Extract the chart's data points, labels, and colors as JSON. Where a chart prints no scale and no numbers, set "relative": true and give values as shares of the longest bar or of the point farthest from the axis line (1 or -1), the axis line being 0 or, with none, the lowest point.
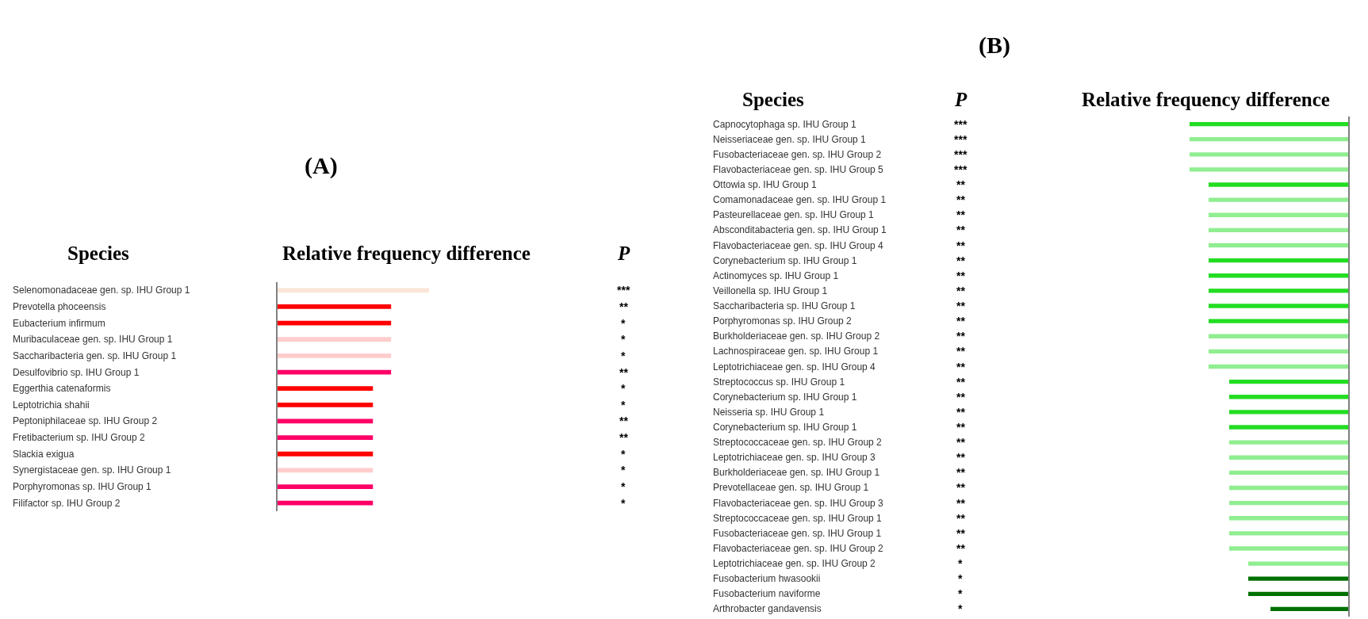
{
  "chart_data": [
    {
      "type": "bar",
      "orientation": "horizontal",
      "relative": true,
      "title": "(A)",
      "ylabel": "Species",
      "xlabel": "Relative frequency difference",
      "categories": [
        "Selenomonadaceae gen. sp. IHU Group 1",
        "Prevotella phoceensis",
        "Eubacterium infirmum",
        "Muribaculaceae gen. sp. IHU Group 1",
        "Saccharibacteria gen. sp. IHU Group 1",
        "Desulfovibrio sp. IHU Group 1",
        "Eggerthia catenaformis",
        "Leptotrichia shahii",
        "Peptoniphilaceae sp. IHU Group 2",
        "Fretibacterium sp. IHU Group 2",
        "Slackia exigua",
        "Synergistaceae gen. sp. IHU Group 1",
        "Porphyromonas sp. IHU Group 1",
        "Filifactor sp. IHU Group 2"
      ],
      "values": [
        1,
        0.75,
        0.75,
        0.75,
        0.75,
        0.75,
        0.63,
        0.63,
        0.63,
        0.63,
        0.63,
        0.63,
        0.63,
        0.63
      ],
      "colors": [
        "#fbe5d6",
        "#ff0000",
        "#ff0000",
        "#ffcccc",
        "#ffcccc",
        "#ff0066",
        "#ff0000",
        "#ff0000",
        "#ff0066",
        "#ff0066",
        "#ff0000",
        "#ffcccc",
        "#ff0066",
        "#ff0066"
      ],
      "annotations": [
        "P",
        "***",
        "**",
        "*",
        "*",
        "*",
        "**",
        "*",
        "*",
        "**",
        "**",
        "*",
        "*",
        "*",
        "*"
      ]
    },
    {
      "type": "bar",
      "orientation": "horizontal",
      "relative": true,
      "title": "(B)",
      "ylabel": "Species",
      "xlabel": "Relative frequency difference",
      "categories": [
        "Capnocytophaga sp. IHU Group 1",
        "Neisseriaceae gen. sp. IHU Group 1",
        "Fusobacteriaceae gen. sp. IHU Group 2",
        "Flavobacteriaceae gen. sp. IHU Group 5",
        "Ottowia sp. IHU Group 1",
        "Comamonadaceae gen. sp. IHU Group 1",
        "Pasteurellaceae gen. sp. IHU Group 1",
        "Absconditabacteria gen. sp. IHU Group 1",
        "Flavobacteriaceae gen. sp. IHU Group 4",
        "Corynebacterium sp. IHU Group 1",
        "Actinomyces sp. IHU Group 1",
        "Veillonella sp. IHU Group 1",
        "Saccharibacteria sp. IHU Group 1",
        "Porphyromonas sp. IHU Group 2",
        "Burkholderiaceae gen. sp. IHU Group 2",
        "Lachnospiraceae gen. sp. IHU Group 1",
        "Leptotrichiaceae gen. sp. IHU Group 4",
        "Streptococcus sp. IHU Group 1",
        "Corynebacterium sp. IHU Group 1",
        "Neisseria sp. IHU Group 1",
        "Corynebacterium sp. IHU Group 1",
        "Streptococcaceae gen. sp. IHU Group 2",
        "Leptotrichiaceae gen. sp. IHU Group 3",
        "Burkholderiaceae gen. sp. IHU Group 1",
        "Prevotellaceae gen. sp. IHU Group 1",
        "Flavobacteriaceae gen. sp. IHU Group 3",
        "Streptococcaceae gen. sp. IHU Group 1",
        "Fusobacteriaceae gen. sp. IHU Group 1",
        "Flavobacteriaceae gen. sp. IHU Group 2",
        "Leptotrichiaceae gen. sp. IHU Group 2",
        "Fusobacterium hwasookii",
        "Fusobacterium naviforme",
        "Arthrobacter gandavensis"
      ],
      "values": [
        -1,
        -1,
        -1,
        -1,
        -0.88,
        -0.88,
        -0.88,
        -0.88,
        -0.88,
        -0.88,
        -0.88,
        -0.88,
        -0.88,
        -0.88,
        -0.88,
        -0.88,
        -0.88,
        -0.75,
        -0.75,
        -0.75,
        -0.75,
        -0.75,
        -0.75,
        -0.75,
        -0.75,
        -0.75,
        -0.75,
        -0.75,
        -0.75,
        -0.63,
        -0.63,
        -0.63,
        -0.49
      ],
      "colors": [
        "#22dd22",
        "#90ee90",
        "#90ee90",
        "#90ee90",
        "#22dd22",
        "#90ee90",
        "#90ee90",
        "#90ee90",
        "#90ee90",
        "#22dd22",
        "#22dd22",
        "#22dd22",
        "#22dd22",
        "#22dd22",
        "#90ee90",
        "#90ee90",
        "#90ee90",
        "#22dd22",
        "#22dd22",
        "#22dd22",
        "#22dd22",
        "#90ee90",
        "#90ee90",
        "#90ee90",
        "#90ee90",
        "#90ee90",
        "#90ee90",
        "#90ee90",
        "#90ee90",
        "#90ee90",
        "#007000",
        "#007000",
        "#007000"
      ],
      "annotations": [
        "P",
        "***",
        "***",
        "***",
        "***",
        "**",
        "**",
        "**",
        "**",
        "**",
        "**",
        "**",
        "**",
        "**",
        "**",
        "**",
        "**",
        "**",
        "**",
        "**",
        "**",
        "**",
        "**",
        "**",
        "**",
        "**",
        "**",
        "**",
        "**",
        "**",
        "*",
        "*",
        "*",
        "*"
      ]
    }
  ]
}
